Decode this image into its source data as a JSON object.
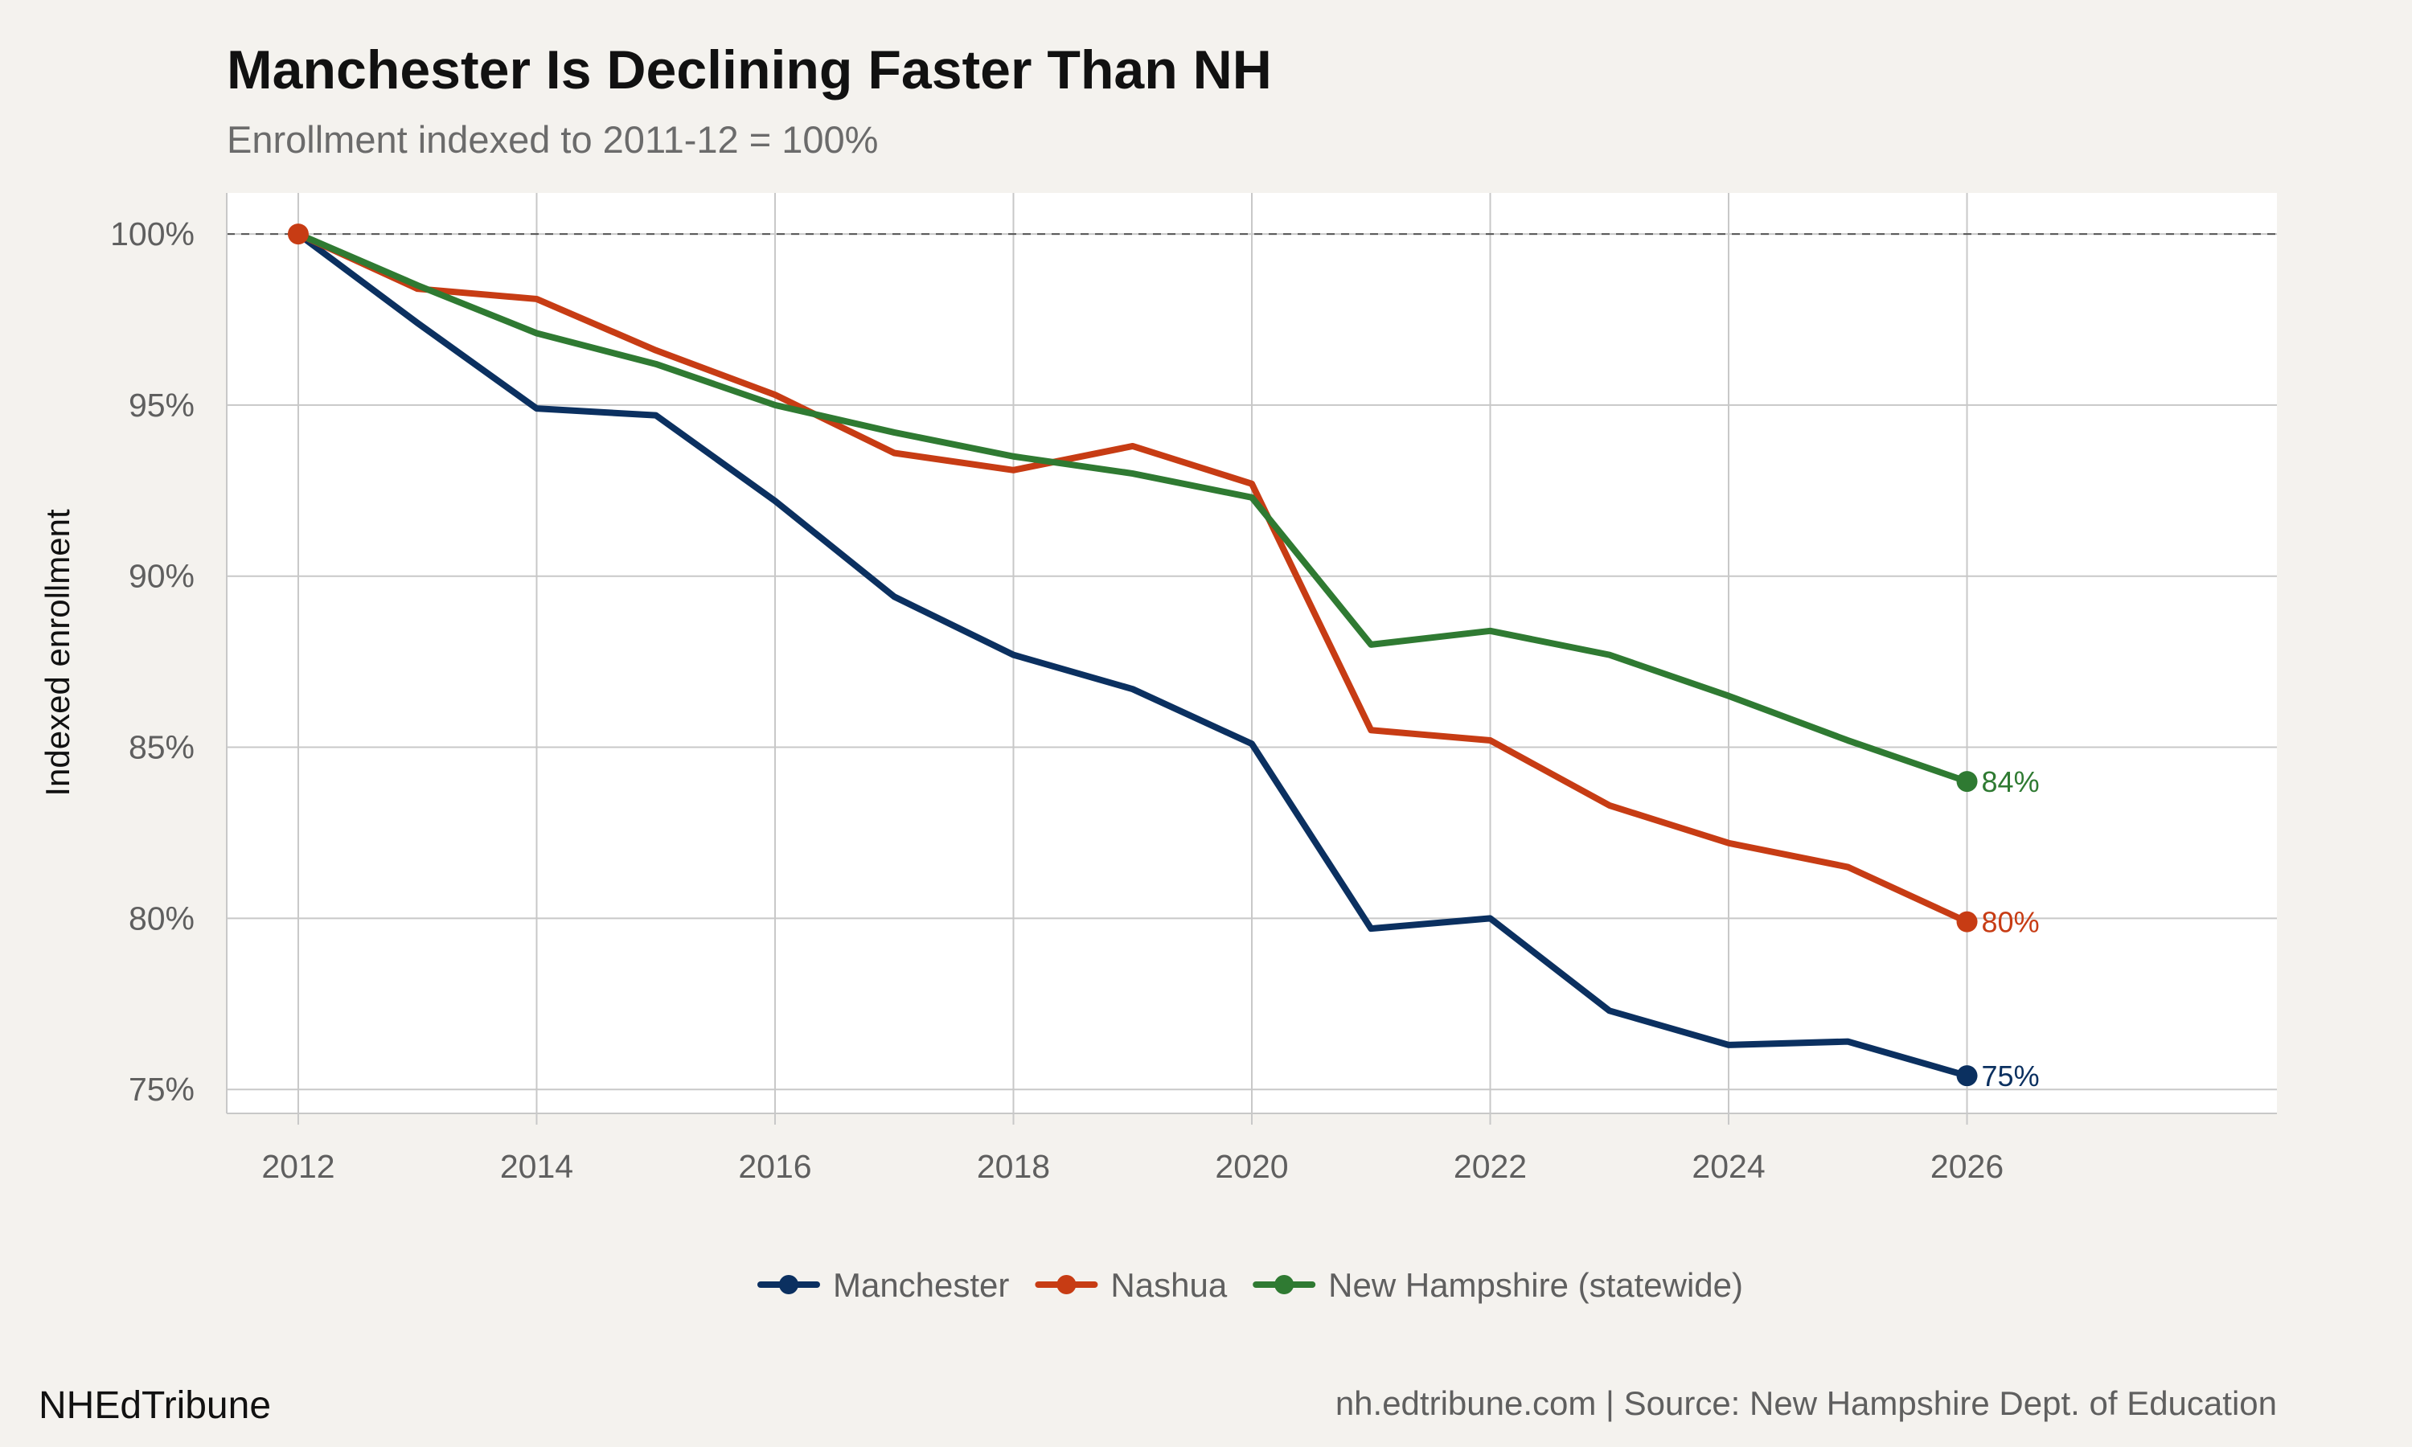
{
  "chart_data": {
    "type": "line",
    "title": "Manchester Is Declining Faster Than NH",
    "subtitle": "Enrollment indexed to 2011-12 = 100%",
    "xlabel": "",
    "ylabel": "Indexed enrollment",
    "x": [
      2012,
      2013,
      2014,
      2015,
      2016,
      2017,
      2018,
      2019,
      2020,
      2021,
      2022,
      2023,
      2024,
      2025,
      2026
    ],
    "x_ticks": [
      "2012",
      "2014",
      "2016",
      "2018",
      "2020",
      "2022",
      "2024",
      "2026"
    ],
    "y_ticks": [
      "100%",
      "95%",
      "90%",
      "85%",
      "80%",
      "75%"
    ],
    "xlim": [
      2011.4,
      2028.6
    ],
    "ylim": [
      74.3,
      101.2
    ],
    "reference_line": 100,
    "grid": true,
    "legend_position": "bottom",
    "series": [
      {
        "name": "Manchester",
        "color": "#0b3060",
        "values": [
          100,
          97.4,
          94.9,
          94.7,
          92.2,
          89.4,
          87.7,
          86.7,
          85.1,
          79.7,
          80.0,
          77.3,
          76.3,
          76.4,
          75.4
        ],
        "end_label": "75%"
      },
      {
        "name": "Nashua",
        "color": "#c73c14",
        "values": [
          100,
          98.4,
          98.1,
          96.6,
          95.3,
          93.6,
          93.1,
          93.8,
          92.7,
          85.5,
          85.2,
          83.3,
          82.2,
          81.5,
          79.9
        ],
        "end_label": "80%"
      },
      {
        "name": "New Hampshire (statewide)",
        "color": "#2f7a32",
        "values": [
          100,
          98.5,
          97.1,
          96.2,
          95.0,
          94.2,
          93.5,
          93.0,
          92.3,
          88.0,
          88.4,
          87.7,
          86.5,
          85.2,
          84.0
        ],
        "end_label": "84%"
      }
    ]
  },
  "footer": {
    "brand": "NHEdTribune",
    "credit": "nh.edtribune.com | Source: New Hampshire Dept. of Education"
  }
}
